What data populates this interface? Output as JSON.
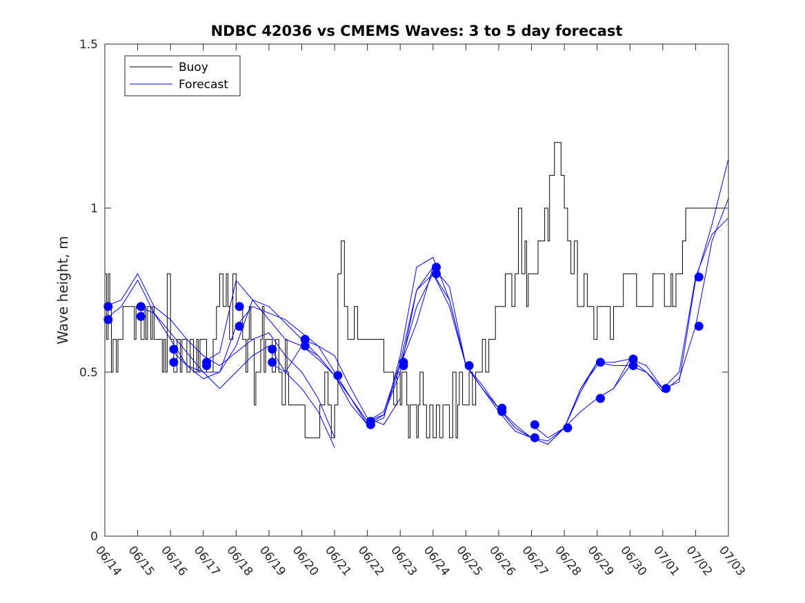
{
  "chart_data": {
    "type": "line",
    "title": "NDBC 42036 vs CMEMS Waves: 3 to 5 day forecast",
    "xlabel": "",
    "ylabel": "Wave height, m",
    "xlim_days": [
      0,
      19
    ],
    "ylim": [
      0,
      1.5
    ],
    "x_tick_labels": [
      "06/14",
      "06/15",
      "06/16",
      "06/17",
      "06/18",
      "06/19",
      "06/20",
      "06/21",
      "06/22",
      "06/23",
      "06/24",
      "06/25",
      "06/26",
      "06/27",
      "06/28",
      "06/29",
      "06/30",
      "07/01",
      "07/02",
      "07/03"
    ],
    "y_tick_values": [
      0,
      0.5,
      1,
      1.5
    ],
    "y_tick_labels": [
      "0",
      "0.5",
      "1",
      "1.5"
    ],
    "grid": false,
    "legend_position": "top-left",
    "legend": [
      "Buoy",
      "Forecast"
    ],
    "colors": {
      "buoy": "#000000",
      "forecast": "#0000ff"
    },
    "buoy_series": {
      "name": "Buoy",
      "x": [
        0.0,
        0.05,
        0.1,
        0.15,
        0.2,
        0.25,
        0.35,
        0.4,
        0.45,
        0.5,
        0.55,
        0.6,
        0.65,
        0.75,
        0.85,
        0.9,
        0.95,
        1.0,
        1.1,
        1.2,
        1.25,
        1.3,
        1.35,
        1.4,
        1.45,
        1.5,
        1.55,
        1.6,
        1.7,
        1.75,
        1.8,
        1.85,
        1.9,
        2.0,
        2.1,
        2.2,
        2.3,
        2.35,
        2.4,
        2.5,
        2.6,
        2.7,
        2.8,
        2.85,
        2.9,
        2.95,
        3.0,
        3.1,
        3.2,
        3.3,
        3.4,
        3.5,
        3.6,
        3.7,
        3.75,
        3.8,
        3.9,
        4.0,
        4.1,
        4.2,
        4.3,
        4.35,
        4.4,
        4.45,
        4.5,
        4.55,
        4.6,
        4.7,
        4.75,
        4.8,
        4.85,
        4.9,
        5.0,
        5.1,
        5.2,
        5.3,
        5.4,
        5.5,
        5.55,
        5.6,
        5.7,
        5.8,
        5.9,
        6.0,
        6.1,
        6.15,
        6.2,
        6.25,
        6.3,
        6.35,
        6.4,
        6.5,
        6.55,
        6.6,
        6.7,
        6.8,
        6.9,
        7.0,
        7.1,
        7.2,
        7.3,
        7.4,
        7.5,
        7.6,
        7.7,
        7.8,
        7.9,
        8.0,
        8.1,
        8.2,
        8.3,
        8.4,
        8.5,
        8.6,
        8.7,
        8.8,
        8.9,
        9.0,
        9.05,
        9.1,
        9.2,
        9.25,
        9.3,
        9.4,
        9.5,
        9.55,
        9.6,
        9.7,
        9.8,
        9.9,
        10.0,
        10.1,
        10.2,
        10.3,
        10.4,
        10.5,
        10.6,
        10.7,
        10.75,
        10.8,
        10.9,
        11.0,
        11.1,
        11.2,
        11.3,
        11.4,
        11.5,
        11.6,
        11.7,
        11.75,
        11.8,
        11.9,
        12.0,
        12.1,
        12.2,
        12.3,
        12.4,
        12.5,
        12.6,
        12.7,
        12.8,
        12.85,
        12.9,
        13.0,
        13.1,
        13.2,
        13.3,
        13.4,
        13.5,
        13.55,
        13.6,
        13.7,
        13.8,
        13.9,
        14.0,
        14.1,
        14.2,
        14.3,
        14.4,
        14.5,
        14.6,
        14.7,
        14.8,
        14.9,
        15.0,
        15.1,
        15.2,
        15.3,
        15.4,
        15.5,
        15.6,
        15.7,
        15.8,
        15.85,
        15.9,
        16.0,
        16.1,
        16.2,
        16.3,
        16.4,
        16.5,
        16.6,
        16.7,
        16.8,
        16.9,
        17.0,
        17.05,
        17.1,
        17.2,
        17.25,
        17.3,
        17.4,
        17.5,
        17.6,
        17.7,
        17.8,
        17.9,
        18.0,
        18.1,
        18.2,
        18.3,
        18.4,
        18.5,
        18.6,
        18.7,
        18.8,
        18.9,
        19.0
      ],
      "y": [
        0.8,
        0.6,
        0.8,
        0.7,
        0.5,
        0.6,
        0.5,
        0.6,
        0.6,
        0.6,
        0.7,
        0.7,
        0.7,
        0.7,
        0.7,
        0.6,
        0.7,
        0.7,
        0.6,
        0.7,
        0.6,
        0.7,
        0.7,
        0.6,
        0.7,
        0.6,
        0.6,
        0.6,
        0.6,
        0.5,
        0.6,
        0.5,
        0.8,
        0.6,
        0.5,
        0.6,
        0.5,
        0.6,
        0.6,
        0.5,
        0.6,
        0.5,
        0.6,
        0.5,
        0.6,
        0.6,
        0.6,
        0.5,
        0.5,
        0.6,
        0.7,
        0.8,
        0.7,
        0.8,
        0.7,
        0.6,
        0.8,
        0.7,
        0.7,
        0.6,
        0.5,
        0.6,
        0.7,
        0.6,
        0.6,
        0.4,
        0.5,
        0.5,
        0.6,
        0.7,
        0.5,
        0.6,
        0.6,
        0.5,
        0.6,
        0.5,
        0.4,
        0.6,
        0.5,
        0.4,
        0.4,
        0.4,
        0.4,
        0.4,
        0.3,
        0.3,
        0.3,
        0.3,
        0.3,
        0.3,
        0.3,
        0.3,
        0.4,
        0.4,
        0.5,
        0.4,
        0.3,
        0.4,
        0.8,
        0.9,
        0.7,
        0.6,
        0.6,
        0.7,
        0.6,
        0.6,
        0.6,
        0.6,
        0.6,
        0.6,
        0.6,
        0.6,
        0.5,
        0.5,
        0.5,
        0.4,
        0.5,
        0.4,
        0.5,
        0.5,
        0.4,
        0.3,
        0.4,
        0.4,
        0.3,
        0.4,
        0.5,
        0.4,
        0.3,
        0.4,
        0.3,
        0.4,
        0.3,
        0.4,
        0.4,
        0.3,
        0.5,
        0.3,
        0.4,
        0.5,
        0.4,
        0.4,
        0.5,
        0.4,
        0.5,
        0.5,
        0.6,
        0.5,
        0.6,
        0.6,
        0.6,
        0.7,
        0.7,
        0.7,
        0.8,
        0.8,
        0.7,
        0.8,
        1.0,
        0.8,
        0.9,
        0.7,
        0.8,
        0.8,
        0.8,
        0.9,
        0.9,
        1.0,
        0.9,
        1.1,
        1.1,
        1.2,
        1.2,
        1.1,
        1.0,
        0.9,
        0.8,
        0.9,
        0.7,
        0.7,
        0.8,
        0.7,
        0.7,
        0.6,
        0.7,
        0.7,
        0.7,
        0.7,
        0.6,
        0.7,
        0.7,
        0.7,
        0.8,
        0.8,
        0.8,
        0.8,
        0.8,
        0.7,
        0.7,
        0.7,
        0.7,
        0.7,
        0.8,
        0.8,
        0.8,
        0.8,
        0.7,
        0.7,
        0.7,
        0.8,
        0.7,
        0.8,
        0.8,
        0.9,
        1.0,
        1.0,
        1.0,
        1.0,
        1.0,
        1.0,
        1.0,
        1.0,
        1.0,
        1.0,
        1.0,
        1.0,
        1.0,
        1.0
      ]
    },
    "forecast_series": [
      {
        "x": [
          0.0,
          0.5,
          1.0,
          1.5,
          2.0,
          2.5,
          3.0,
          3.5,
          4.0,
          4.5,
          5.0,
          5.5,
          6.0,
          6.5,
          7.0
        ],
        "y": [
          0.7,
          0.72,
          0.8,
          0.7,
          0.66,
          0.6,
          0.55,
          0.52,
          0.56,
          0.6,
          0.62,
          0.55,
          0.5,
          0.42,
          0.3
        ]
      },
      {
        "x": [
          0.0,
          0.5,
          1.0,
          1.5,
          2.0,
          2.5,
          3.0,
          3.5,
          4.0,
          4.5,
          5.0,
          5.5,
          6.0,
          6.5,
          7.0
        ],
        "y": [
          0.66,
          0.7,
          0.78,
          0.68,
          0.62,
          0.56,
          0.5,
          0.45,
          0.5,
          0.55,
          0.58,
          0.5,
          0.45,
          0.38,
          0.27
        ]
      },
      {
        "x": [
          1.0,
          1.5,
          2.0,
          2.5,
          3.0,
          3.5,
          4.0,
          4.5,
          5.0,
          5.5,
          6.0,
          6.5,
          7.0,
          7.5,
          8.0,
          8.5,
          9.0
        ],
        "y": [
          0.7,
          0.68,
          0.6,
          0.52,
          0.48,
          0.5,
          0.58,
          0.72,
          0.7,
          0.65,
          0.6,
          0.58,
          0.55,
          0.45,
          0.36,
          0.34,
          0.42
        ]
      },
      {
        "x": [
          2.0,
          2.5,
          3.0,
          3.5,
          4.0,
          4.5,
          5.0,
          5.5,
          6.0,
          6.5,
          7.0,
          7.5,
          8.0,
          8.5,
          9.0,
          9.5,
          10.0
        ],
        "y": [
          0.57,
          0.52,
          0.5,
          0.5,
          0.64,
          0.7,
          0.68,
          0.66,
          0.62,
          0.58,
          0.5,
          0.42,
          0.35,
          0.37,
          0.5,
          0.75,
          0.82
        ]
      },
      {
        "x": [
          3.0,
          3.5,
          4.0,
          4.5,
          5.0,
          5.5,
          6.0,
          6.5,
          7.0,
          7.5,
          8.0,
          8.5,
          9.0,
          9.5,
          10.0,
          10.5,
          11.0
        ],
        "y": [
          0.53,
          0.56,
          0.78,
          0.72,
          0.66,
          0.6,
          0.58,
          0.55,
          0.49,
          0.42,
          0.34,
          0.36,
          0.55,
          0.82,
          0.85,
          0.72,
          0.52
        ]
      },
      {
        "x": [
          5.0,
          5.5,
          6.0,
          6.5,
          7.0,
          7.5,
          8.0,
          8.5,
          9.0,
          9.5,
          10.0,
          10.5,
          11.0,
          11.5,
          12.0,
          12.5,
          13.0
        ],
        "y": [
          0.53,
          0.5,
          0.58,
          0.54,
          0.49,
          0.42,
          0.35,
          0.38,
          0.53,
          0.75,
          0.8,
          0.72,
          0.52,
          0.45,
          0.39,
          0.34,
          0.3
        ]
      },
      {
        "x": [
          6.0,
          6.5,
          7.0,
          7.5,
          8.0,
          8.5,
          9.0,
          9.5,
          10.0,
          10.5,
          11.0,
          11.5,
          12.0,
          12.5,
          13.0,
          13.5,
          14.0,
          14.5,
          15.0
        ],
        "y": [
          0.6,
          0.55,
          0.49,
          0.4,
          0.34,
          0.37,
          0.52,
          0.65,
          0.82,
          0.76,
          0.52,
          0.45,
          0.38,
          0.32,
          0.3,
          0.28,
          0.33,
          0.45,
          0.52
        ]
      },
      {
        "x": [
          9.0,
          9.5,
          10.0,
          10.5,
          11.0,
          11.5,
          12.0,
          12.5,
          13.0,
          13.5,
          14.0,
          14.5,
          15.0,
          15.5,
          16.0,
          16.5,
          17.0
        ],
        "y": [
          0.52,
          0.7,
          0.8,
          0.7,
          0.52,
          0.46,
          0.39,
          0.33,
          0.3,
          0.29,
          0.33,
          0.45,
          0.53,
          0.52,
          0.52,
          0.5,
          0.45
        ]
      },
      {
        "x": [
          12.0,
          12.5,
          13.0,
          13.5,
          14.0,
          14.5,
          15.0,
          15.5,
          16.0,
          16.5,
          17.0,
          17.5,
          18.0,
          18.5,
          19.0
        ],
        "y": [
          0.39,
          0.33,
          0.3,
          0.28,
          0.33,
          0.44,
          0.53,
          0.53,
          0.54,
          0.5,
          0.44,
          0.48,
          0.64,
          0.9,
          1.03
        ]
      },
      {
        "x": [
          13.0,
          13.5,
          14.0,
          14.5,
          15.0,
          15.5,
          16.0,
          16.5,
          17.0,
          17.5,
          18.0,
          18.5,
          19.0
        ],
        "y": [
          0.34,
          0.3,
          0.33,
          0.38,
          0.42,
          0.45,
          0.52,
          0.5,
          0.45,
          0.5,
          0.79,
          0.92,
          0.97
        ]
      },
      {
        "x": [
          15.0,
          15.5,
          16.0,
          16.5,
          17.0,
          17.5,
          18.0,
          18.5,
          19.0
        ],
        "y": [
          0.42,
          0.45,
          0.54,
          0.52,
          0.45,
          0.47,
          0.78,
          0.95,
          1.15
        ]
      }
    ],
    "forecast_markers": [
      {
        "x": 0.1,
        "y": 0.7
      },
      {
        "x": 0.1,
        "y": 0.66
      },
      {
        "x": 1.1,
        "y": 0.7
      },
      {
        "x": 1.1,
        "y": 0.67
      },
      {
        "x": 2.1,
        "y": 0.57
      },
      {
        "x": 2.1,
        "y": 0.53
      },
      {
        "x": 3.1,
        "y": 0.53
      },
      {
        "x": 3.1,
        "y": 0.52
      },
      {
        "x": 4.1,
        "y": 0.7
      },
      {
        "x": 4.1,
        "y": 0.64
      },
      {
        "x": 5.1,
        "y": 0.57
      },
      {
        "x": 5.1,
        "y": 0.53
      },
      {
        "x": 6.1,
        "y": 0.6
      },
      {
        "x": 6.1,
        "y": 0.58
      },
      {
        "x": 7.1,
        "y": 0.49
      },
      {
        "x": 8.1,
        "y": 0.35
      },
      {
        "x": 8.1,
        "y": 0.34
      },
      {
        "x": 9.1,
        "y": 0.53
      },
      {
        "x": 9.1,
        "y": 0.52
      },
      {
        "x": 10.1,
        "y": 0.82
      },
      {
        "x": 10.1,
        "y": 0.8
      },
      {
        "x": 11.1,
        "y": 0.52
      },
      {
        "x": 12.1,
        "y": 0.39
      },
      {
        "x": 12.1,
        "y": 0.38
      },
      {
        "x": 13.1,
        "y": 0.34
      },
      {
        "x": 13.1,
        "y": 0.3
      },
      {
        "x": 14.1,
        "y": 0.33
      },
      {
        "x": 15.1,
        "y": 0.53
      },
      {
        "x": 15.1,
        "y": 0.42
      },
      {
        "x": 16.1,
        "y": 0.54
      },
      {
        "x": 16.1,
        "y": 0.52
      },
      {
        "x": 17.1,
        "y": 0.45
      },
      {
        "x": 18.1,
        "y": 0.79
      },
      {
        "x": 18.1,
        "y": 0.64
      }
    ]
  }
}
